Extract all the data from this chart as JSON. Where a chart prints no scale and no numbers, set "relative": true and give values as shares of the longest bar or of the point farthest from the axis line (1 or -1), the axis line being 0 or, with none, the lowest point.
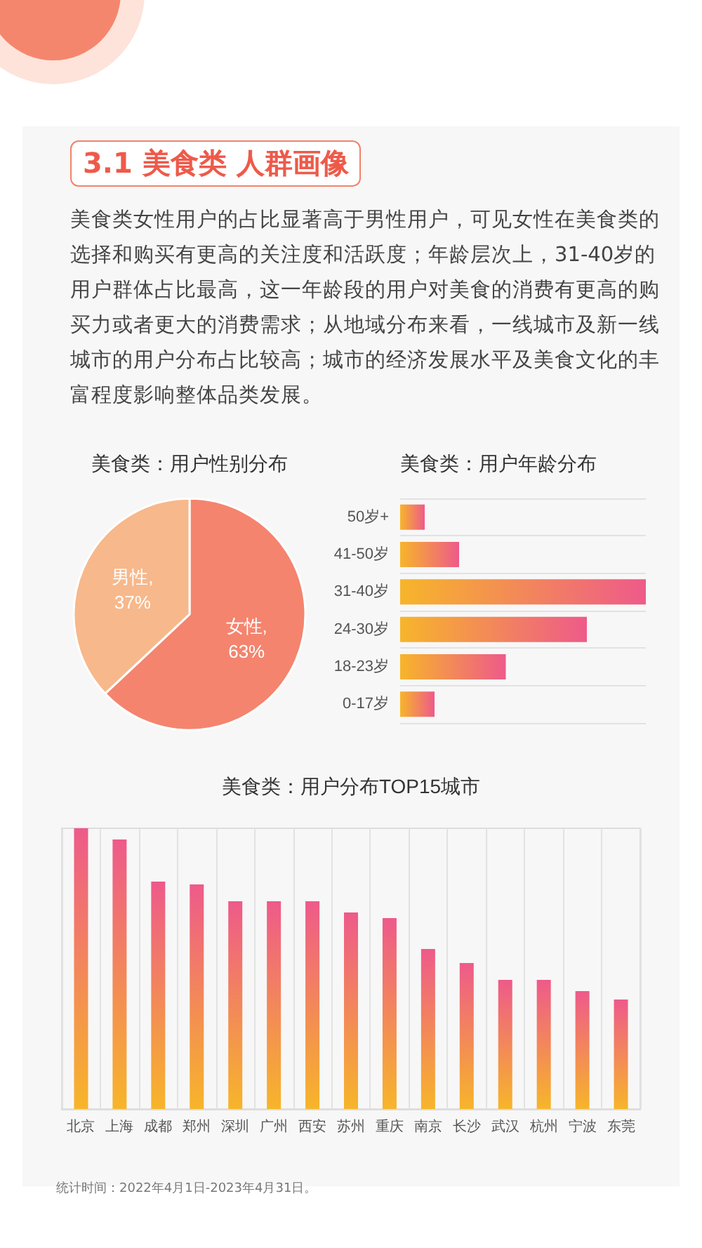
{
  "chart_data": [
    {
      "type": "other",
      "title": "3.1 美食类 人群画像",
      "annotations": [
        "美食类女性用户的占比显著高于男性用户，可见女性在美食类的选择和购买有更高的关注度和活跃度；年龄层次上，31-40岁的用户群体占比最高，这一年龄段的用户对美食的消费有更高的购买力或者更大的消费需求；从地域分布来看，一线城市及新一线城市的用户分布占比较高；城市的经济发展水平及美食文化的丰富程度影响整体品类发展。"
      ]
    },
    {
      "type": "pie",
      "title": "美食类：用户性别分布",
      "categories": [
        "女性",
        "男性"
      ],
      "values": [
        63,
        37
      ],
      "colors": [
        "#f4846e",
        "#f7b88b"
      ],
      "value_labels": [
        ", 63%",
        ", 37%"
      ]
    },
    {
      "type": "bar",
      "title": "美食类：用户年龄分布",
      "orientation": "horizontal",
      "relative": true,
      "grid": "y",
      "categories": [
        "50岁+",
        "41-50岁",
        "31-40岁",
        "24-30岁",
        "18-23岁",
        "0-17岁"
      ],
      "values": [
        0.1,
        0.24,
        1,
        0.76,
        0.43,
        0.14
      ],
      "color": "#ee5a8a"
    },
    {
      "type": "bar",
      "title": "美食类：用户分布TOP15城市",
      "relative": true,
      "grid": "x",
      "categories": [
        "北京",
        "上海",
        "成都",
        "郑州",
        "深圳",
        "广州",
        "西安",
        "苏州",
        "重庆",
        "南京",
        "长沙",
        "武汉",
        "杭州",
        "宁波",
        "东莞"
      ],
      "values": [
        1,
        0.96,
        0.81,
        0.8,
        0.74,
        0.74,
        0.74,
        0.7,
        0.68,
        0.57,
        0.52,
        0.46,
        0.46,
        0.42,
        0.39
      ],
      "color": "#ee5a8a",
      "annotations": [
        "统计时间：2022年4月1日-2023年4月31日。"
      ]
    }
  ]
}
